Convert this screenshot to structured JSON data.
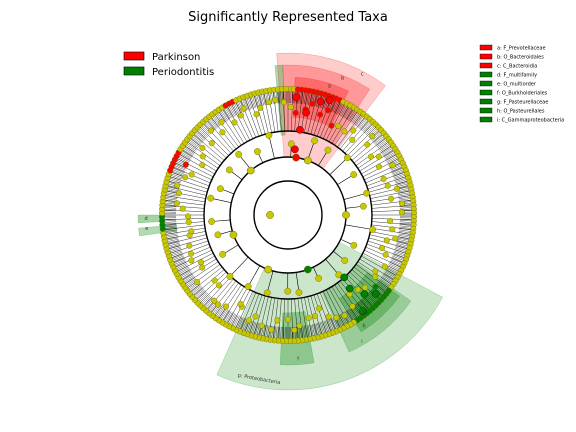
{
  "title": "Significantly Represented Taxa",
  "groups": [
    {
      "label": "Parkinson",
      "color": "#ff0000"
    },
    {
      "label": "Periodontitis",
      "color": "#008000"
    }
  ],
  "taxa_legend": [
    {
      "label": "a: F_Prevotellaceae",
      "group": "Parkinson"
    },
    {
      "label": "b: O_Bacteroidales",
      "group": "Parkinson"
    },
    {
      "label": "c: C_Bacteroidia",
      "group": "Parkinson"
    },
    {
      "label": "d: F_multifamily",
      "group": "Periodontitis"
    },
    {
      "label": "e: O_multiorder",
      "group": "Periodontitis"
    },
    {
      "label": "f: O_Burkholderiales",
      "group": "Periodontitis"
    },
    {
      "label": "g: F_Pasteurellaceae",
      "group": "Periodontitis"
    },
    {
      "label": "h: O_Pasteurellales",
      "group": "Periodontitis"
    },
    {
      "label": "i: C_Gammaproteobacteria",
      "group": "Periodontitis"
    }
  ],
  "clade_labels": {
    "p_label": "p: Proteobacteria",
    "letters": [
      "a",
      "b",
      "c",
      "d",
      "e",
      "f",
      "g",
      "h",
      "i"
    ]
  },
  "colors": {
    "node_default": "#c8c800",
    "node_stroke": "#666600",
    "parkinson": "#ff0000",
    "periodontitis": "#008000",
    "edge": "#000000"
  }
}
